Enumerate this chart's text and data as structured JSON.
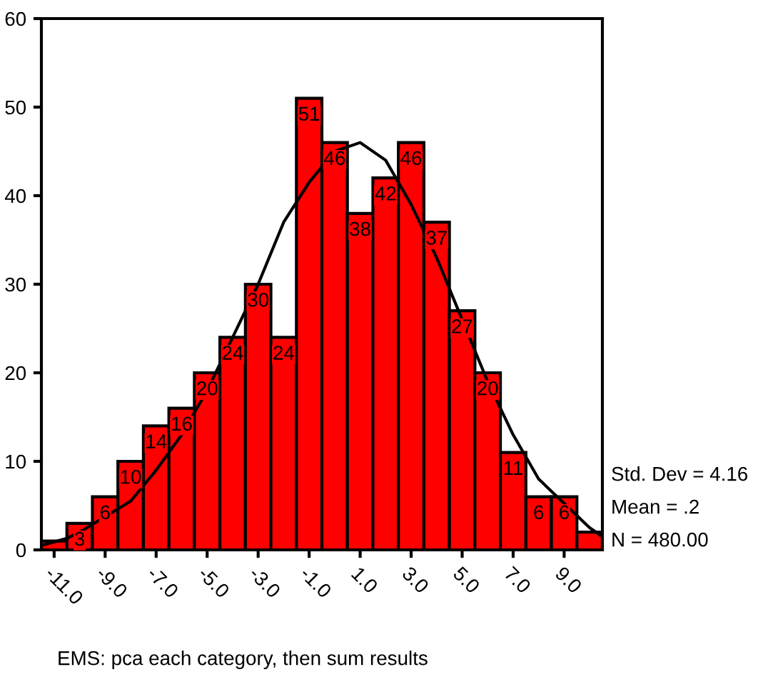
{
  "chart_data": {
    "type": "histogram",
    "bins": [
      -11.5,
      -10.5,
      -9.5,
      -8.5,
      -7.5,
      -6.5,
      -5.5,
      -4.5,
      -3.5,
      -2.5,
      -1.5,
      -0.5,
      0.5,
      1.5,
      2.5,
      3.5,
      4.5,
      5.5,
      6.5,
      7.5,
      8.5,
      9.5,
      10.5
    ],
    "values": [
      1,
      3,
      6,
      10,
      14,
      16,
      20,
      24,
      30,
      24,
      51,
      46,
      38,
      42,
      46,
      37,
      27,
      20,
      11,
      6,
      6,
      2
    ],
    "value_labels": [
      null,
      "3",
      "6",
      "10",
      "14",
      "16",
      "20",
      "24",
      "30",
      "24",
      "51",
      "46",
      "38",
      "42",
      "46",
      "37",
      "27",
      "20",
      "11",
      "6",
      "6",
      null
    ],
    "color": "#ff0000",
    "series": [
      {
        "type": "line",
        "color": "#000000",
        "x": [
          -11.5,
          -10.5,
          -10,
          -8,
          -7,
          -6,
          -5,
          -4,
          -3,
          -2,
          -1,
          0,
          1,
          2,
          3,
          4,
          5,
          6,
          7,
          8,
          10,
          10.5
        ],
        "values": [
          0.5,
          1.3,
          2,
          5.5,
          9,
          13,
          18,
          24,
          30,
          37,
          41.5,
          45,
          46,
          44,
          39,
          33,
          26,
          19,
          13,
          8,
          2.5,
          1.5
        ]
      }
    ],
    "xlim": [
      -11.5,
      10.5
    ],
    "xticks": [
      {
        "value": -11,
        "label": "-11.0"
      },
      {
        "value": -9,
        "label": "-9.0"
      },
      {
        "value": -7,
        "label": "-7.0"
      },
      {
        "value": -5,
        "label": "-5.0"
      },
      {
        "value": -3,
        "label": "-3.0"
      },
      {
        "value": -1,
        "label": "-1.0"
      },
      {
        "value": 1,
        "label": "1.0"
      },
      {
        "value": 3,
        "label": "3.0"
      },
      {
        "value": 5,
        "label": "5.0"
      },
      {
        "value": 7,
        "label": "7.0"
      },
      {
        "value": 9,
        "label": "9.0"
      }
    ],
    "ylim": [
      0,
      60
    ],
    "yticks": [
      0,
      10,
      20,
      30,
      40,
      50,
      60
    ],
    "grid": false,
    "legend": false,
    "annotations": [
      "Std. Dev = 4.16",
      "Mean = .2",
      "N = 480.00",
      "EMS: pca each category, then sum results"
    ]
  }
}
